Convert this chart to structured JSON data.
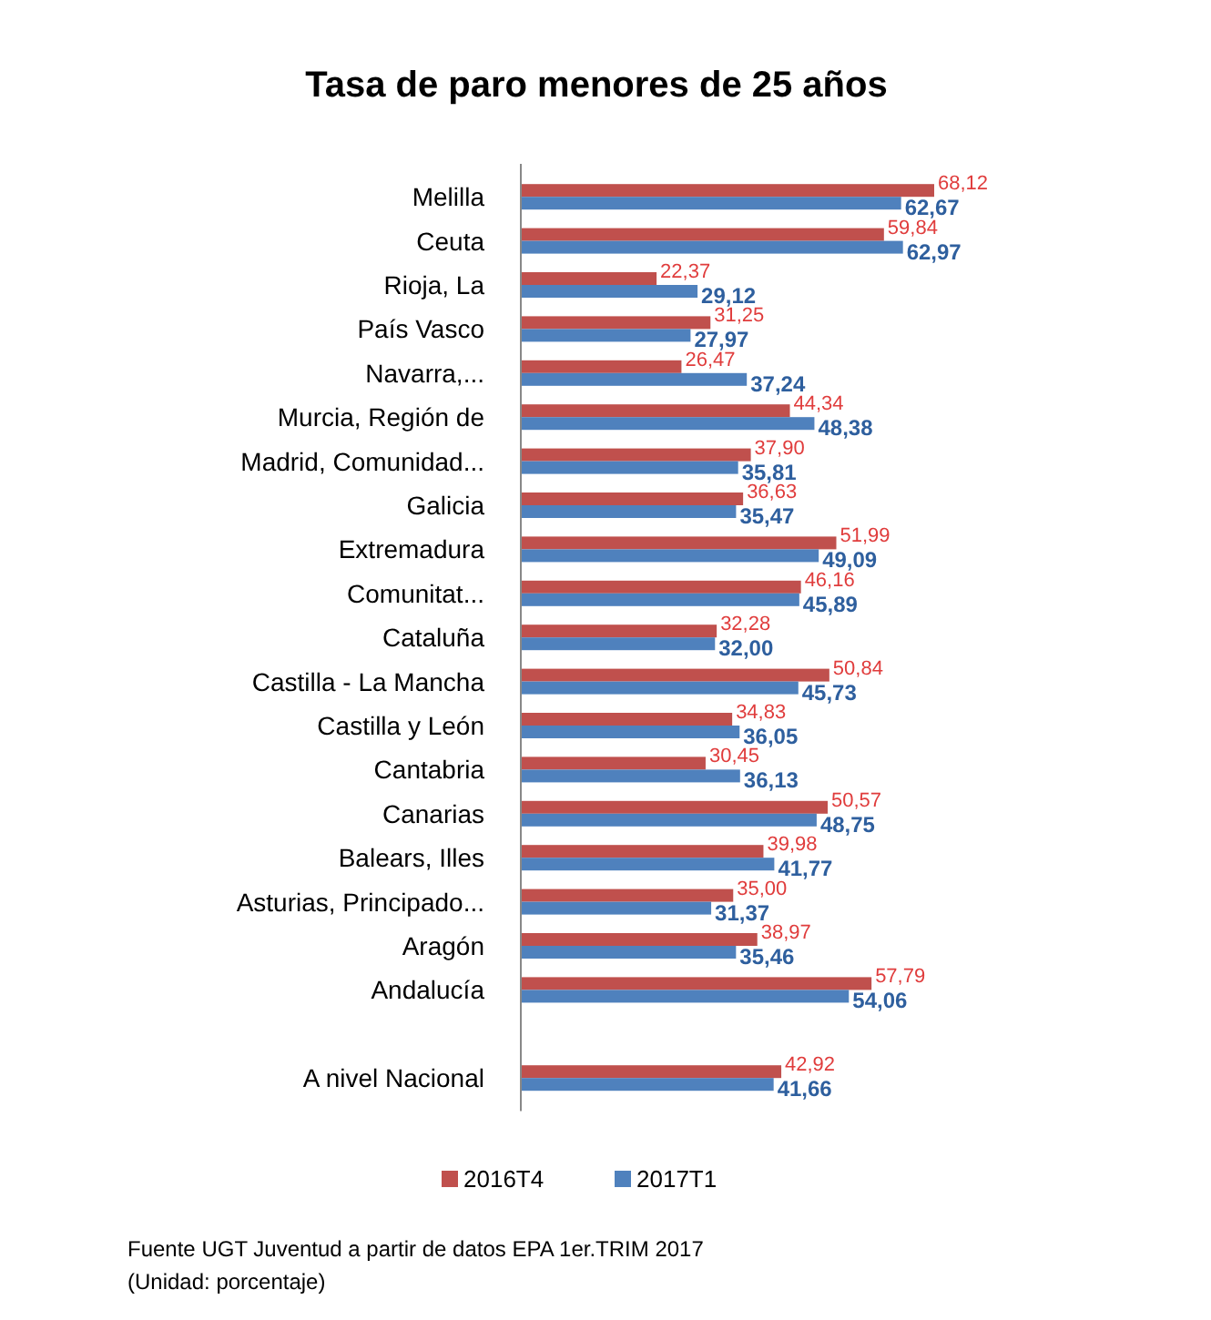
{
  "chart_data": {
    "type": "bar",
    "orientation": "horizontal",
    "title": "Tasa de paro menores de 25 años",
    "categories": [
      "Melilla",
      "Ceuta",
      "Rioja, La",
      "País Vasco",
      "Navarra,...",
      "Murcia, Región de",
      "Madrid, Comunidad...",
      "Galicia",
      "Extremadura",
      "Comunitat...",
      "Cataluña",
      "Castilla - La Mancha",
      "Castilla y León",
      "Cantabria",
      "Canarias",
      "Balears, Illes",
      "Asturias, Principado...",
      "Aragón",
      "Andalucía",
      null,
      "A nivel Nacional"
    ],
    "series": [
      {
        "name": "2016T4",
        "color": "#c0504d",
        "values": [
          68.12,
          59.84,
          22.37,
          31.25,
          26.47,
          44.34,
          37.9,
          36.63,
          51.99,
          46.16,
          32.28,
          50.84,
          34.83,
          30.45,
          50.57,
          39.98,
          35.0,
          38.97,
          57.79,
          null,
          42.92
        ],
        "value_labels": [
          "68,12",
          "59,84",
          "22,37",
          "31,25",
          "26,47",
          "44,34",
          "37,90",
          "36,63",
          "51,99",
          "46,16",
          "32,28",
          "50,84",
          "34,83",
          "30,45",
          "50,57",
          "39,98",
          "35,00",
          "38,97",
          "57,79",
          null,
          "42,92"
        ]
      },
      {
        "name": "2017T1",
        "color": "#4f81bd",
        "values": [
          62.67,
          62.97,
          29.12,
          27.97,
          37.24,
          48.38,
          35.81,
          35.47,
          49.09,
          45.89,
          32.0,
          45.73,
          36.05,
          36.13,
          48.75,
          41.77,
          31.37,
          35.46,
          54.06,
          null,
          41.66
        ],
        "value_labels": [
          "62,67",
          "62,97",
          "29,12",
          "27,97",
          "37,24",
          "48,38",
          "35,81",
          "35,47",
          "49,09",
          "45,89",
          "32,00",
          "45,73",
          "36,05",
          "36,13",
          "48,75",
          "41,77",
          "31,37",
          "35,46",
          "54,06",
          null,
          "41,66"
        ]
      }
    ],
    "tick_labels": "y",
    "legend": "bottom",
    "annotations": [
      "Fuente UGT Juventud a partir de datos EPA 1er.TRIM 2017",
      "(Unidad: porcentaje)"
    ]
  }
}
